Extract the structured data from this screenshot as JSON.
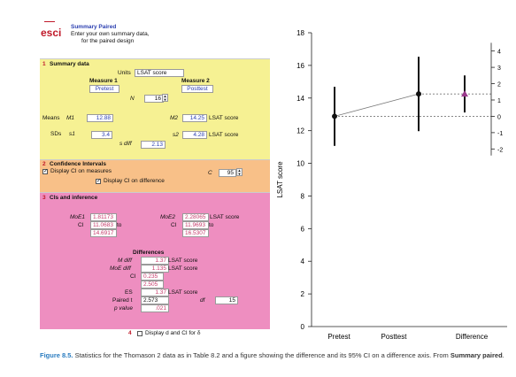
{
  "header": {
    "logo": "esci",
    "title": "Summary Paired",
    "subtitle_line1": "Enter your own summary data,",
    "subtitle_line2": "for the paired design"
  },
  "summary": {
    "num": "1",
    "title": "Summary data",
    "units_label": "Units",
    "units_value": "LSAT score",
    "measure1_label": "Measure 1",
    "measure1_value": "Pretest",
    "measure2_label": "Measure 2",
    "measure2_value": "Posttest",
    "n_label": "N",
    "n_value": "16",
    "means_label": "Means",
    "m1_label": "M1",
    "m1_value": "12.88",
    "m2_label": "M2",
    "m2_value": "14.25",
    "m2_unit": "LSAT score",
    "sds_label": "SDs",
    "s1_label": "s1",
    "s1_value": "3.4",
    "s2_label": "s2",
    "s2_value": "4.28",
    "s2_unit": "LSAT score",
    "sdiff_label": "s diff",
    "sdiff_value": "2.13"
  },
  "ci": {
    "num": "2",
    "title": "Confidence Intervals",
    "display_measures": "Display CI on measures",
    "display_difference": "Display CI on difference",
    "c_label": "C",
    "c_value": "95"
  },
  "inference": {
    "num": "3",
    "title": "CIs and inference",
    "moe1_label": "MoE1",
    "moe1_value": "1.81173",
    "ci1_label": "CI",
    "ci1_low": "11.0683",
    "ci1_to": "to",
    "ci1_high": "14.6917",
    "moe2_label": "MoE2",
    "moe2_value": "2.28065",
    "moe2_unit": "LSAT score",
    "ci2_label": "CI",
    "ci2_low": "11.9693",
    "ci2_to": "to",
    "ci2_high": "16.5307",
    "differences_title": "Differences",
    "mdiff_label": "M diff",
    "mdiff_value": "1.37",
    "mdiff_unit": "LSAT score",
    "moediff_label": "MoE diff",
    "moediff_value": "1.135",
    "moediff_unit": "LSAT score",
    "cid_label": "CI",
    "cid_low": "0.235",
    "cid_high": "2.505",
    "es_label": "ES",
    "es_value": "1.37",
    "es_unit": "LSAT score",
    "t_label": "Paired t",
    "t_value": "2.573",
    "df_label": "df",
    "df_value": "15",
    "p_label": "p value",
    "p_value": ".021"
  },
  "footer_panel": {
    "num": "4",
    "display_d": "Display d and CI for δ"
  },
  "chart_data": {
    "type": "scatter",
    "ylabel": "LSAT score",
    "ylim": [
      0,
      18
    ],
    "yticks": [
      "0",
      "2",
      "4",
      "6",
      "8",
      "10",
      "12",
      "14",
      "16",
      "18"
    ],
    "categories": [
      "Pretest",
      "Posttest",
      "Difference"
    ],
    "points": [
      {
        "name": "Pretest",
        "mean": 12.88,
        "ci_low": 11.07,
        "ci_high": 14.69
      },
      {
        "name": "Posttest",
        "mean": 14.25,
        "ci_low": 11.97,
        "ci_high": 16.53
      },
      {
        "name": "Difference",
        "mean": 1.37,
        "ci_low": 0.235,
        "ci_high": 2.505
      }
    ],
    "diff_axis": {
      "ticks": [
        "4",
        "3",
        "2",
        "1",
        "0",
        "-1",
        "-2"
      ],
      "range": [
        -2.4,
        4.5
      ]
    },
    "colors": {
      "points": "#111111",
      "difference": "#9a3a8c",
      "connector": "#777777"
    }
  },
  "caption": {
    "figure_label": "Figure 8.5.",
    "text": " Statistics for the Thomason 2 data as in Table 8.2 and a figure showing the difference and its 95% CI on a difference axis. From ",
    "source": "Summary paired",
    "end": "."
  }
}
